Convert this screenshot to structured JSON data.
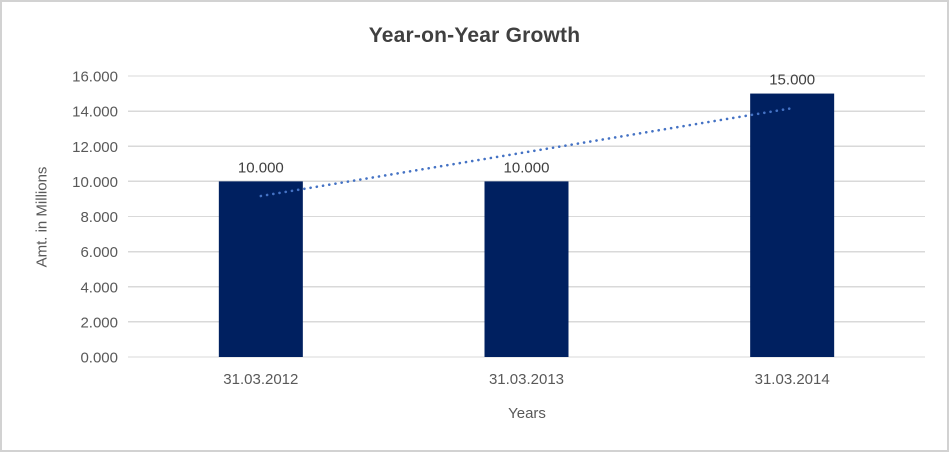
{
  "chart_data": {
    "type": "bar",
    "title": "Year-on-Year Growth",
    "categories": [
      "31.03.2012",
      "31.03.2013",
      "31.03.2014"
    ],
    "series": [
      {
        "name": "Amt. in Millions",
        "values": [
          10.0,
          10.0,
          15.0
        ]
      }
    ],
    "data_labels": [
      "10.000",
      "10.000",
      "15.000"
    ],
    "xlabel": "Years",
    "ylabel": "Amt. in Millions",
    "ylim": [
      0,
      16
    ],
    "ytick_step": 2,
    "ytick_labels": [
      "0.000",
      "2.000",
      "4.000",
      "6.000",
      "8.000",
      "10.000",
      "12.000",
      "14.000",
      "16.000"
    ],
    "grid": true,
    "legend": "none",
    "trendline": {
      "type": "linear",
      "values": [
        9.167,
        11.667,
        14.167
      ],
      "style": "dotted"
    },
    "colors": {
      "bar": "#002060",
      "trendline": "#4472C4",
      "gridline": "#D9D9D9",
      "title_text": "#404040",
      "axis_text": "#595959",
      "frame_border": "#D2D2D2",
      "background": "#FFFFFF"
    }
  }
}
